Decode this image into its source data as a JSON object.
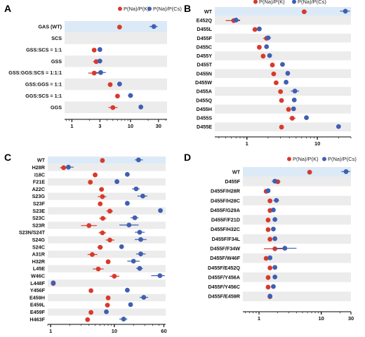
{
  "colors": {
    "k": "#d9392b",
    "cs": "#3f5fb0",
    "highlight": "#dbeaf6",
    "band": "#ececec"
  },
  "chart_data": [
    {
      "panel": "A",
      "type": "scatter",
      "xscale": "log",
      "legend": {
        "k": "P(Na)/P(K)",
        "cs": "P(Na)/P(Cs)"
      },
      "xticks": [
        1,
        3,
        10,
        30
      ],
      "xlim": [
        0.75,
        42
      ],
      "rows": [
        {
          "label": "GAS (WT)",
          "k": 6.5,
          "k_err": [
            6.0,
            7.0
          ],
          "cs": 25,
          "cs_err": [
            21,
            29
          ]
        },
        {
          "label": "SCS",
          "k": null,
          "cs": null
        },
        {
          "label": "GSS:SCS = 1:1",
          "k": 2.4,
          "k_err": [
            2.2,
            2.6
          ],
          "cs": 3.0,
          "cs_err": [
            2.8,
            3.2
          ]
        },
        {
          "label": "GSS",
          "k": 2.6,
          "k_err": [
            2.3,
            2.9
          ],
          "cs": 3.0,
          "cs_err": [
            2.7,
            3.3
          ]
        },
        {
          "label": "GSS:GGS:SCS = 1:1:1",
          "k": 2.4,
          "k_err": [
            1.9,
            3.0
          ],
          "cs": 3.1,
          "cs_err": [
            2.5,
            3.8
          ]
        },
        {
          "label": "GSS:GGS = 1:1",
          "k": 4.5,
          "k_err": [
            4.2,
            4.8
          ],
          "cs": 6.5,
          "cs_err": [
            6.1,
            7.0
          ]
        },
        {
          "label": "GGS:SCS = 1:1",
          "k": 6.0,
          "k_err": [
            5.6,
            6.4
          ],
          "cs": 10,
          "cs_err": [
            9.0,
            11
          ]
        },
        {
          "label": "GGS",
          "k": 5.0,
          "k_err": [
            4.2,
            6.0
          ],
          "cs": 15,
          "cs_err": [
            14,
            16
          ]
        }
      ]
    },
    {
      "panel": "B",
      "type": "scatter",
      "xscale": "log",
      "legend": {
        "k": "P(Na)/P(K)",
        "cs": "P(Na)/P(Cs)"
      },
      "xticks": [
        1,
        10
      ],
      "xlim": [
        0.35,
        30
      ],
      "rows": [
        {
          "label": "WT",
          "k": 6.5,
          "k_err": [
            6.0,
            7.1
          ],
          "cs": 25,
          "cs_err": [
            21,
            29
          ]
        },
        {
          "label": "E452Q",
          "k": 0.65,
          "k_err": [
            0.5,
            0.8
          ],
          "cs": 0.7,
          "cs_err": [
            0.6,
            0.8
          ]
        },
        {
          "label": "D455L",
          "k": 1.3,
          "k_err": [
            1.2,
            1.4
          ],
          "cs": 1.5,
          "cs_err": [
            1.4,
            1.6
          ]
        },
        {
          "label": "D455F",
          "k": 1.9,
          "k_err": [
            1.7,
            2.1
          ],
          "cs": 2.0,
          "cs_err": [
            1.8,
            2.2
          ]
        },
        {
          "label": "D455C",
          "k": 1.5,
          "k_err": [
            1.4,
            1.6
          ],
          "cs": 1.9,
          "cs_err": [
            1.8,
            2.0
          ]
        },
        {
          "label": "D455Y",
          "k": 1.7,
          "k_err": [
            1.6,
            1.8
          ],
          "cs": 2.1,
          "cs_err": [
            2.0,
            2.2
          ]
        },
        {
          "label": "D455T",
          "k": 2.3,
          "k_err": [
            2.2,
            2.4
          ],
          "cs": 3.2,
          "cs_err": [
            3.0,
            3.4
          ]
        },
        {
          "label": "D455N",
          "k": 2.4,
          "k_err": [
            2.3,
            2.5
          ],
          "cs": 3.8,
          "cs_err": [
            3.6,
            4.0
          ]
        },
        {
          "label": "D455W",
          "k": 2.6,
          "k_err": [
            2.4,
            2.8
          ],
          "cs": 3.6,
          "cs_err": [
            3.4,
            3.8
          ]
        },
        {
          "label": "D455A",
          "k": 3.0,
          "k_err": [
            2.8,
            3.2
          ],
          "cs": 4.8,
          "cs_err": [
            4.2,
            5.5
          ]
        },
        {
          "label": "D455Q",
          "k": 3.1,
          "k_err": [
            2.9,
            3.3
          ],
          "cs": 4.7,
          "cs_err": [
            4.5,
            4.9
          ]
        },
        {
          "label": "D455H",
          "k": 3.9,
          "k_err": [
            3.7,
            4.1
          ],
          "cs": 4.6,
          "cs_err": [
            4.4,
            4.8
          ]
        },
        {
          "label": "D455S",
          "k": 4.4,
          "k_err": [
            4.0,
            4.9
          ],
          "cs": 7.0,
          "cs_err": [
            6.5,
            7.5
          ]
        },
        {
          "label": "D455E",
          "k": 3.1,
          "k_err": [
            3.0,
            3.2
          ],
          "cs": 20,
          "cs_err": [
            19,
            21
          ]
        }
      ]
    },
    {
      "panel": "C",
      "type": "scatter",
      "xscale": "log",
      "legend": {
        "k": "P(Na)/P(K)",
        "cs": "P(Na)/P(Cs)"
      },
      "xticks": [
        1,
        10,
        60
      ],
      "xlim": [
        0.9,
        64
      ],
      "rows": [
        {
          "label": "WT",
          "k": 6.5,
          "k_err": [
            6.0,
            7.0
          ],
          "cs": 24,
          "cs_err": [
            21,
            28
          ]
        },
        {
          "label": "H28R",
          "k": 1.6,
          "k_err": [
            1.4,
            1.8
          ],
          "cs": 1.9,
          "cs_err": [
            1.7,
            2.3
          ]
        },
        {
          "label": "I18C",
          "k": 5.0,
          "k_err": [
            4.8,
            5.2
          ],
          "cs": 16,
          "cs_err": [
            15,
            17
          ]
        },
        {
          "label": "F21E",
          "k": 4.2,
          "k_err": [
            4.0,
            4.4
          ],
          "cs": 11,
          "cs_err": [
            10.5,
            11.5
          ]
        },
        {
          "label": "A22C",
          "k": 6.3,
          "k_err": [
            5.8,
            6.8
          ],
          "cs": 22,
          "cs_err": [
            19,
            25
          ]
        },
        {
          "label": "S23G",
          "k": 6.5,
          "k_err": [
            5.5,
            7.5
          ],
          "cs": 28,
          "cs_err": [
            23,
            33
          ]
        },
        {
          "label": "S23F",
          "k": 6.0,
          "k_err": [
            5.6,
            6.4
          ],
          "cs": 16,
          "cs_err": [
            15,
            17
          ]
        },
        {
          "label": "S23E",
          "k": 8.5,
          "k_err": [
            7.5,
            9.5
          ],
          "cs": 53,
          "cs_err": [
            51,
            55
          ]
        },
        {
          "label": "S23C",
          "k": 6.6,
          "k_err": [
            5.8,
            7.5
          ],
          "cs": 21,
          "cs_err": [
            18,
            24
          ]
        },
        {
          "label": "S23R",
          "k": 4.0,
          "k_err": [
            3.0,
            5.3
          ],
          "cs": 17,
          "cs_err": [
            12,
            24
          ]
        },
        {
          "label": "S23N/S24T",
          "k": 6.5,
          "k_err": [
            5.7,
            7.4
          ],
          "cs": 25,
          "cs_err": [
            21,
            30
          ]
        },
        {
          "label": "S24G",
          "k": 8.5,
          "k_err": [
            7.3,
            10
          ],
          "cs": 26,
          "cs_err": [
            21,
            32
          ]
        },
        {
          "label": "S24C",
          "k": 6.0,
          "k_err": [
            5.4,
            6.6
          ],
          "cs": 13,
          "cs_err": [
            12,
            14
          ]
        },
        {
          "label": "A31R",
          "k": 4.5,
          "k_err": [
            3.8,
            5.4
          ],
          "cs": 26,
          "cs_err": [
            22,
            31
          ]
        },
        {
          "label": "H32R",
          "k": 8.0,
          "k_err": [
            7.6,
            8.4
          ],
          "cs": 20,
          "cs_err": [
            16,
            25
          ]
        },
        {
          "label": "L45E",
          "k": 5.6,
          "k_err": [
            4.6,
            6.8
          ],
          "cs": 25,
          "cs_err": [
            22,
            28
          ]
        },
        {
          "label": "W46C",
          "k": 10,
          "k_err": [
            8.5,
            12
          ],
          "cs": 52,
          "cs_err": [
            38,
            62
          ]
        },
        {
          "label": "L448F",
          "k": 1.1,
          "k_err": [
            1.05,
            1.15
          ],
          "cs": 1.1,
          "cs_err": [
            1.05,
            1.15
          ]
        },
        {
          "label": "Y456F",
          "k": 4.3,
          "k_err": [
            4.1,
            4.5
          ],
          "cs": 16,
          "cs_err": [
            15,
            17
          ]
        },
        {
          "label": "E459H",
          "k": 8.0,
          "k_err": [
            7.5,
            8.5
          ],
          "cs": 29,
          "cs_err": [
            25,
            34
          ]
        },
        {
          "label": "E459L",
          "k": 7.8,
          "k_err": [
            7.6,
            8.0
          ],
          "cs": 18,
          "cs_err": [
            17.5,
            18.5
          ]
        },
        {
          "label": "E459F",
          "k": 4.3,
          "k_err": [
            4.1,
            4.5
          ],
          "cs": 7.5,
          "cs_err": [
            7.0,
            8.0
          ]
        },
        {
          "label": "H463F",
          "k": 3.8,
          "k_err": [
            3.6,
            4.0
          ],
          "cs": 14,
          "cs_err": [
            12,
            16
          ]
        }
      ]
    },
    {
      "panel": "D",
      "type": "scatter",
      "xscale": "log",
      "legend": {
        "k": "P(Na)/P(K)",
        "cs": "P(Na)/P(Cs)"
      },
      "xticks": [
        1,
        10,
        30
      ],
      "xlim": [
        0.55,
        30
      ],
      "rows": [
        {
          "label": "WT",
          "k": 6.5,
          "k_err": [
            6.0,
            7.0
          ],
          "cs": 25,
          "cs_err": [
            21,
            29
          ]
        },
        {
          "label": "D455F",
          "k": 2.0,
          "k_err": [
            1.8,
            2.2
          ],
          "cs": 1.8,
          "cs_err": [
            1.6,
            2.1
          ]
        },
        {
          "label": "D455F/H28R",
          "k": 1.3,
          "k_err": [
            1.2,
            1.4
          ],
          "cs": 1.4,
          "cs_err": [
            1.3,
            1.5
          ]
        },
        {
          "label": "D455F/H28C",
          "k": 1.5,
          "k_err": [
            1.4,
            1.6
          ],
          "cs": 1.9,
          "cs_err": [
            1.7,
            2.1
          ]
        },
        {
          "label": "D455F/G29A",
          "k": 1.5,
          "k_err": [
            1.4,
            1.6
          ],
          "cs": 1.7,
          "cs_err": [
            1.6,
            1.8
          ]
        },
        {
          "label": "D455F/F21D",
          "k": 1.4,
          "k_err": [
            1.3,
            1.5
          ],
          "cs": 1.8,
          "cs_err": [
            1.7,
            1.9
          ]
        },
        {
          "label": "D455F/H32C",
          "k": 1.4,
          "k_err": [
            1.3,
            1.5
          ],
          "cs": 1.7,
          "cs_err": [
            1.6,
            1.8
          ]
        },
        {
          "label": "D455F/F34L",
          "k": 1.5,
          "k_err": [
            1.4,
            1.6
          ],
          "cs": 1.8,
          "cs_err": [
            1.7,
            1.9
          ]
        },
        {
          "label": "D455F/F34W",
          "k": 1.8,
          "k_err": [
            1.2,
            2.8
          ],
          "cs": 2.6,
          "cs_err": [
            1.7,
            4.0
          ]
        },
        {
          "label": "D455F/W46F",
          "k": 1.3,
          "k_err": [
            1.2,
            1.4
          ],
          "cs": 1.5,
          "cs_err": [
            1.4,
            1.6
          ]
        },
        {
          "label": "D455F/E452Q",
          "k": 1.5,
          "k_err": [
            1.4,
            1.6
          ],
          "cs": 1.8,
          "cs_err": [
            1.7,
            1.9
          ]
        },
        {
          "label": "D455F/Y456A",
          "k": 1.4,
          "k_err": [
            1.3,
            1.5
          ],
          "cs": 1.8,
          "cs_err": [
            1.7,
            1.9
          ]
        },
        {
          "label": "D455F/Y456C",
          "k": 1.4,
          "k_err": [
            1.3,
            1.5
          ],
          "cs": 1.7,
          "cs_err": [
            1.6,
            1.8
          ]
        },
        {
          "label": "D455F/E459R",
          "k": 1.5,
          "k_err": [
            1.4,
            1.6
          ],
          "cs": 1.5,
          "cs_err": [
            1.4,
            1.6
          ]
        }
      ]
    }
  ]
}
